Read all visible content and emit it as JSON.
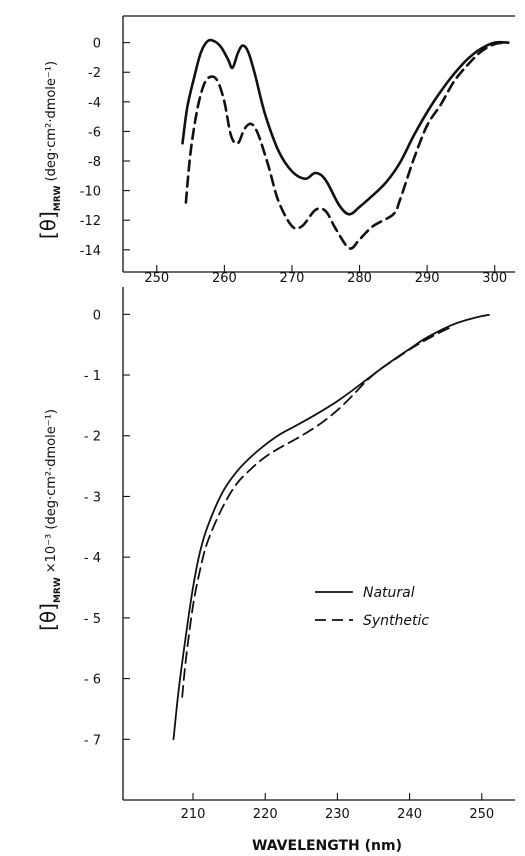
{
  "chart_data": [
    {
      "type": "line",
      "title": "",
      "xlabel": "",
      "ylabel": "[θ]MRW (deg·cm²·dmole⁻¹)",
      "ylabel_parts": {
        "symbol": "[θ]",
        "sub": "MRW",
        "rest": "(deg·cm²·dmole⁻¹)"
      },
      "xlim": [
        245,
        303
      ],
      "ylim": [
        -15.5,
        1.8
      ],
      "x_ticks": [
        250,
        260,
        270,
        280,
        290,
        300
      ],
      "y_ticks": [
        0,
        -2,
        -4,
        -6,
        -8,
        -10,
        -12,
        -14
      ],
      "y_tick_labels": [
        "0",
        "-2",
        "-4",
        "-6",
        "-8",
        "-10",
        "-12",
        "-14"
      ],
      "grid": false,
      "series": [
        {
          "name": "Natural",
          "style": "solid",
          "points": [
            [
              253.8,
              -6.8
            ],
            [
              254.5,
              -4.4
            ],
            [
              255.5,
              -2.4
            ],
            [
              256.5,
              -0.7
            ],
            [
              257.5,
              0.1
            ],
            [
              258.5,
              0.1
            ],
            [
              259.5,
              -0.3
            ],
            [
              260.5,
              -1.1
            ],
            [
              261.2,
              -1.7
            ],
            [
              262,
              -0.7
            ],
            [
              262.7,
              -0.2
            ],
            [
              263.5,
              -0.6
            ],
            [
              264.5,
              -2.1
            ],
            [
              266,
              -4.8
            ],
            [
              268,
              -7.3
            ],
            [
              270,
              -8.7
            ],
            [
              272,
              -9.2
            ],
            [
              273.5,
              -8.8
            ],
            [
              275,
              -9.3
            ],
            [
              277,
              -11.0
            ],
            [
              278.5,
              -11.6
            ],
            [
              280,
              -11.1
            ],
            [
              282,
              -10.3
            ],
            [
              284,
              -9.4
            ],
            [
              286,
              -8.1
            ],
            [
              288,
              -6.3
            ],
            [
              290,
              -4.7
            ],
            [
              292,
              -3.3
            ],
            [
              294,
              -2.1
            ],
            [
              296,
              -1.1
            ],
            [
              298,
              -0.4
            ],
            [
              300,
              0.0
            ],
            [
              302,
              0.0
            ]
          ]
        },
        {
          "name": "Synthetic",
          "style": "dashed",
          "points": [
            [
              254.3,
              -10.8
            ],
            [
              255,
              -7.4
            ],
            [
              256,
              -4.5
            ],
            [
              257,
              -2.8
            ],
            [
              258,
              -2.3
            ],
            [
              259,
              -2.6
            ],
            [
              260,
              -4.0
            ],
            [
              261,
              -6.3
            ],
            [
              262,
              -6.8
            ],
            [
              263,
              -5.8
            ],
            [
              264,
              -5.5
            ],
            [
              265,
              -6.2
            ],
            [
              266.5,
              -8.3
            ],
            [
              268,
              -10.7
            ],
            [
              270,
              -12.4
            ],
            [
              271.5,
              -12.4
            ],
            [
              273.5,
              -11.3
            ],
            [
              275,
              -11.4
            ],
            [
              276.5,
              -12.6
            ],
            [
              278.5,
              -13.9
            ],
            [
              280,
              -13.3
            ],
            [
              282,
              -12.4
            ],
            [
              285,
              -11.6
            ],
            [
              286,
              -10.6
            ],
            [
              288,
              -7.9
            ],
            [
              290,
              -5.6
            ],
            [
              292,
              -4.2
            ],
            [
              294,
              -2.6
            ],
            [
              296,
              -1.5
            ],
            [
              298,
              -0.6
            ],
            [
              300,
              -0.1
            ],
            [
              302,
              0.0
            ]
          ]
        }
      ]
    },
    {
      "type": "line",
      "title": "",
      "xlabel": "WAVELENGTH (nm)",
      "ylabel": "[θ]MRW ×10⁻³ (deg·cm²·dmole⁻¹)",
      "ylabel_parts": {
        "symbol": "[θ]",
        "sub": "MRW",
        "rest": "×10⁻³ (deg·cm²·dmole⁻¹)"
      },
      "xlim": [
        200.3,
        254.6
      ],
      "ylim": [
        -8.0,
        0.45
      ],
      "x_ticks": [
        210,
        220,
        230,
        240,
        250
      ],
      "y_ticks": [
        0,
        -1,
        -2,
        -3,
        -4,
        -5,
        -6,
        -7
      ],
      "y_tick_labels": [
        "0",
        "- 1",
        "- 2",
        "- 3",
        "- 4",
        "- 5",
        "- 6",
        "- 7"
      ],
      "grid": false,
      "legend_position": "right",
      "series": [
        {
          "name": "Natural",
          "style": "solid",
          "points": [
            [
              207.3,
              -7.0
            ],
            [
              208,
              -6.2
            ],
            [
              209,
              -5.3
            ],
            [
              210,
              -4.5
            ],
            [
              211,
              -3.9
            ],
            [
              212,
              -3.5
            ],
            [
              214,
              -2.95
            ],
            [
              216,
              -2.6
            ],
            [
              218,
              -2.35
            ],
            [
              220,
              -2.15
            ],
            [
              222,
              -1.98
            ],
            [
              224,
              -1.85
            ],
            [
              226,
              -1.72
            ],
            [
              228,
              -1.58
            ],
            [
              230,
              -1.43
            ],
            [
              232,
              -1.26
            ],
            [
              234,
              -1.08
            ],
            [
              236,
              -0.9
            ],
            [
              238,
              -0.73
            ],
            [
              240,
              -0.57
            ],
            [
              242,
              -0.41
            ],
            [
              244,
              -0.28
            ],
            [
              246,
              -0.17
            ],
            [
              248,
              -0.09
            ],
            [
              250,
              -0.03
            ],
            [
              251,
              -0.01
            ]
          ]
        },
        {
          "name": "Synthetic",
          "style": "dashed",
          "points": [
            [
              208.5,
              -6.3
            ],
            [
              209,
              -5.7
            ],
            [
              210,
              -4.8
            ],
            [
              211,
              -4.2
            ],
            [
              212,
              -3.75
            ],
            [
              214,
              -3.2
            ],
            [
              216,
              -2.8
            ],
            [
              218,
              -2.55
            ],
            [
              220,
              -2.35
            ],
            [
              222,
              -2.2
            ],
            [
              224,
              -2.07
            ],
            [
              226,
              -1.93
            ],
            [
              228,
              -1.77
            ],
            [
              230,
              -1.58
            ],
            [
              232,
              -1.35
            ],
            [
              234,
              -1.1
            ],
            [
              236,
              -0.9
            ],
            [
              238,
              -0.74
            ],
            [
              240,
              -0.58
            ],
            [
              242,
              -0.44
            ],
            [
              244,
              -0.31
            ],
            [
              246,
              -0.2
            ]
          ]
        }
      ],
      "legend": [
        {
          "label": "Natural",
          "style": "solid"
        },
        {
          "label": "Synthetic",
          "style": "dashed"
        }
      ]
    }
  ]
}
